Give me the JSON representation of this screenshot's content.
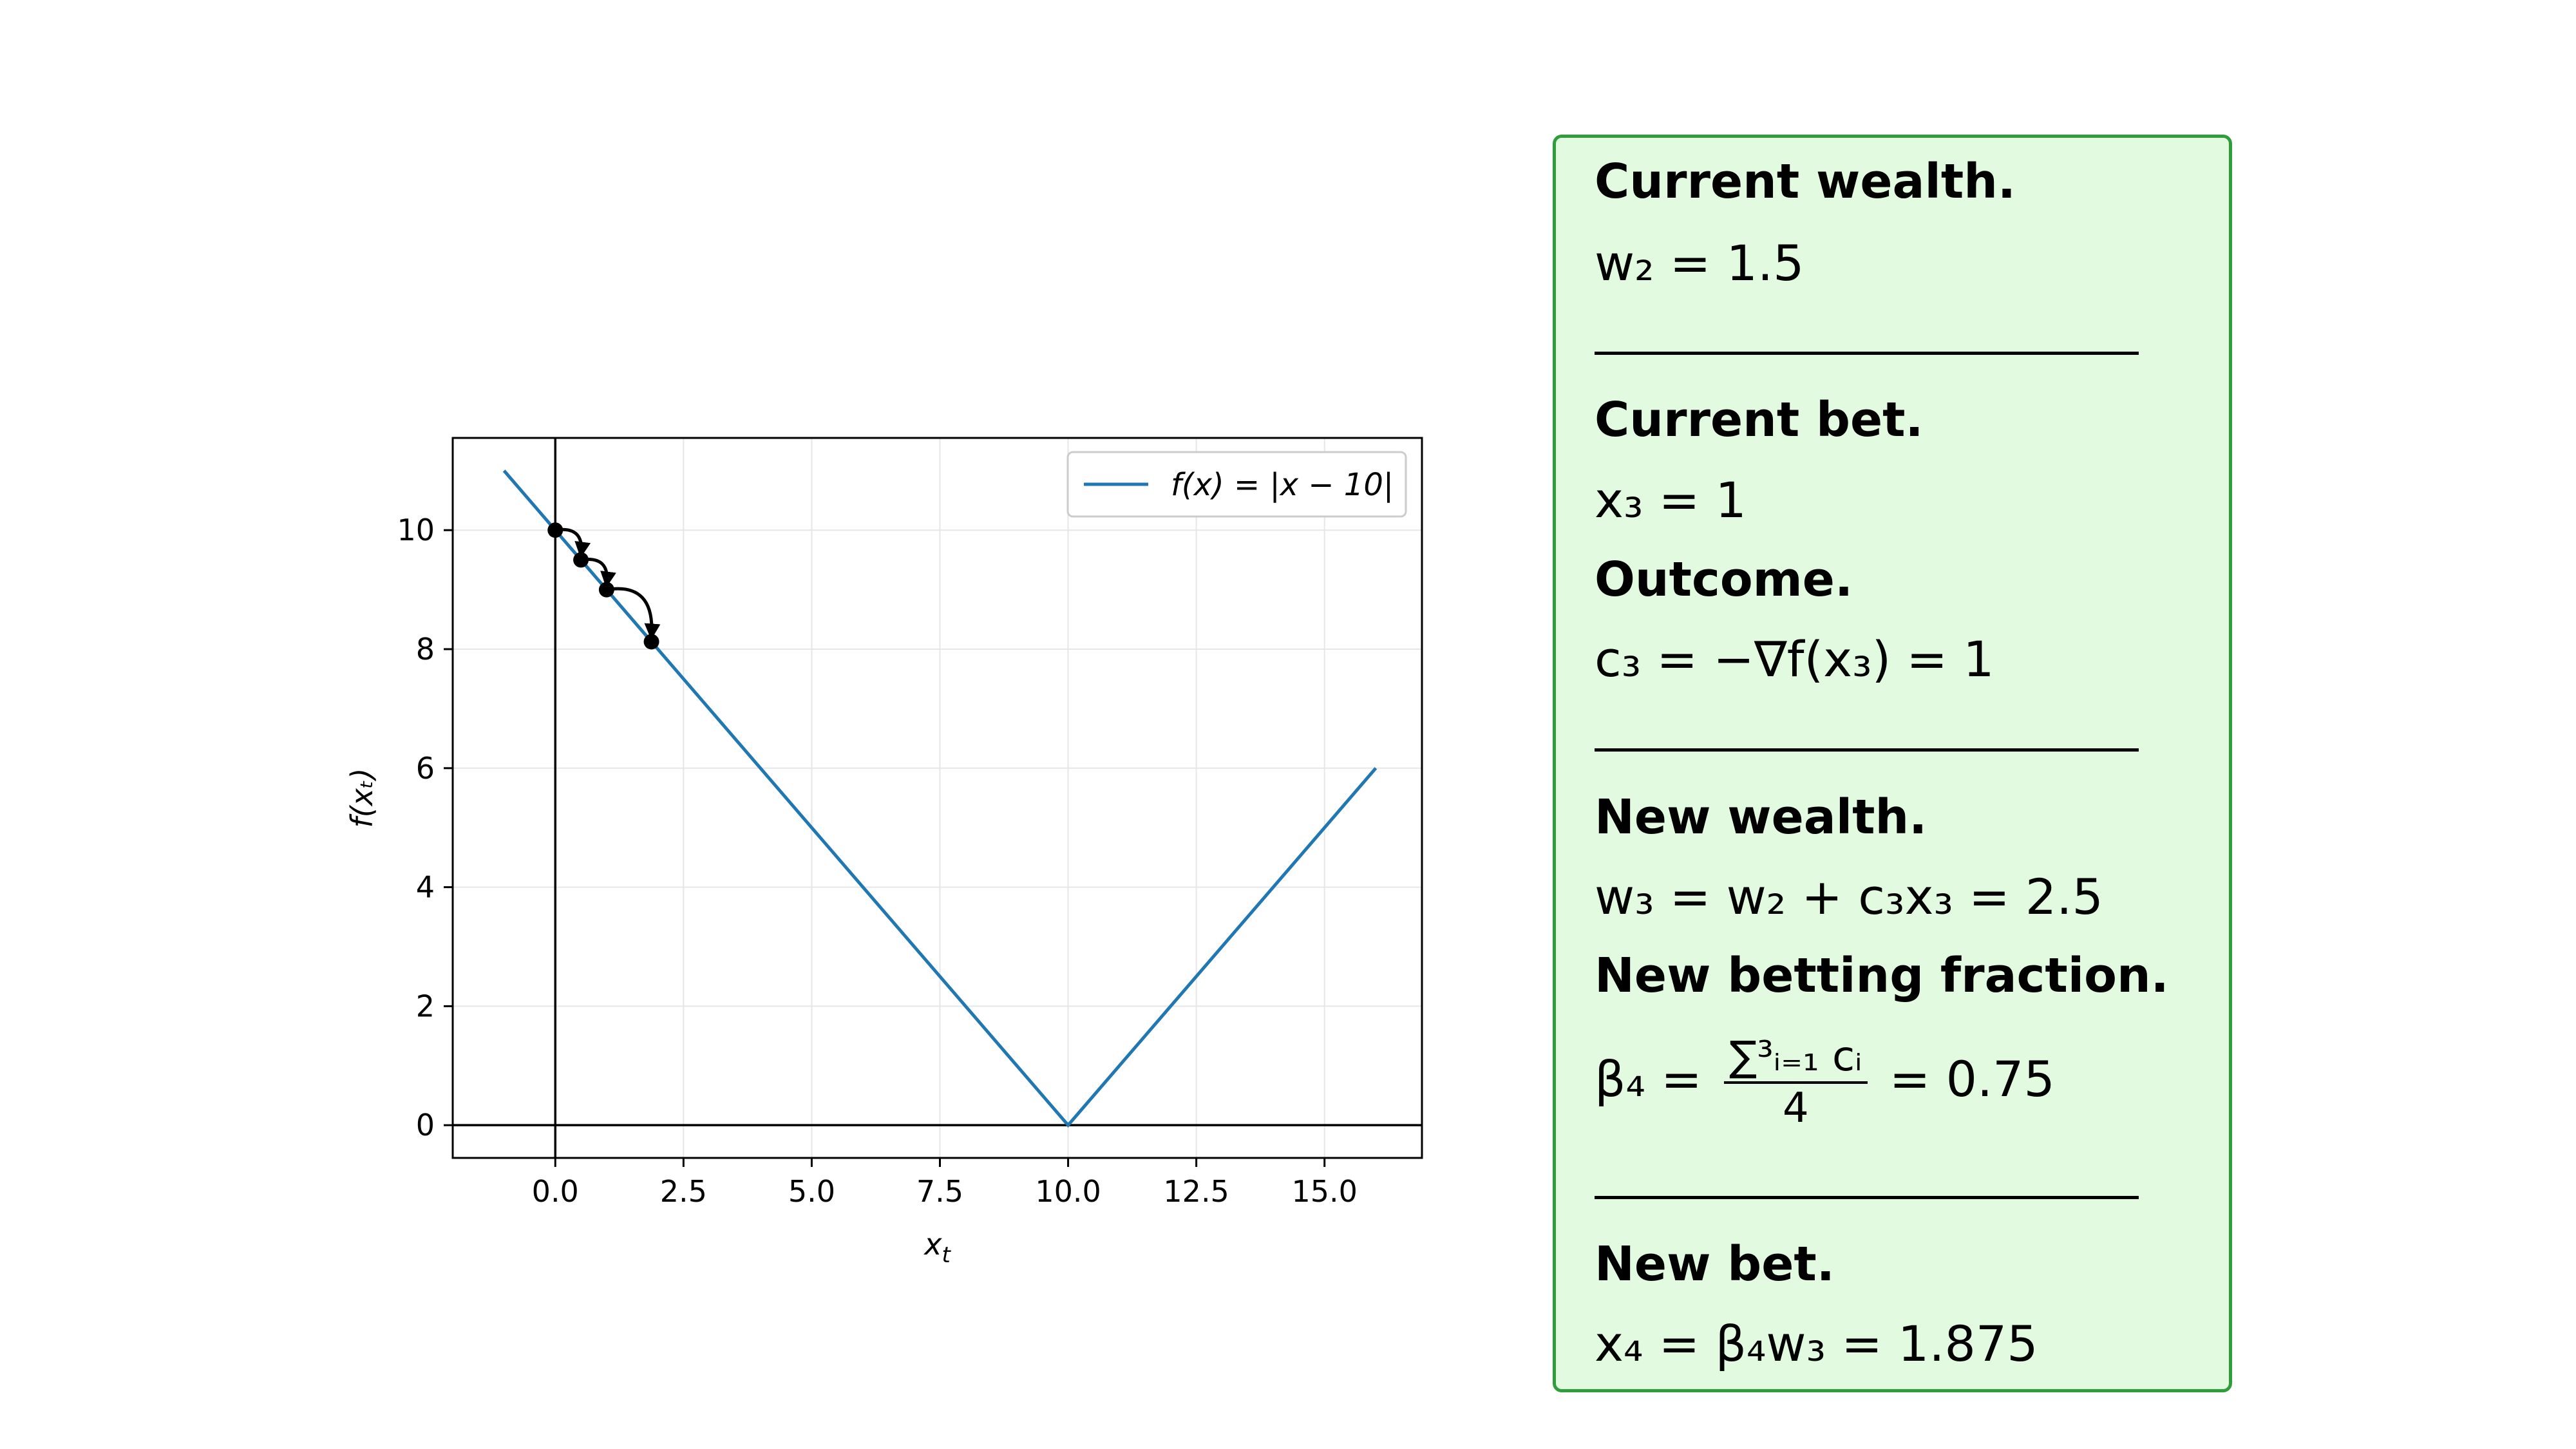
{
  "chart_data": {
    "type": "line",
    "xlabel": "x_t",
    "ylabel": "f(x_t)",
    "xlim": [
      -2.0,
      16.9
    ],
    "ylim": [
      -0.55,
      11.55
    ],
    "xticks": [
      "0.0",
      "2.5",
      "5.0",
      "7.5",
      "10.0",
      "12.5",
      "15.0"
    ],
    "yticks": [
      "0",
      "2",
      "4",
      "6",
      "8",
      "10"
    ],
    "grid": true,
    "legend_placement": "top-right",
    "series": [
      {
        "name": "f(x) = |x − 10|",
        "color": "#1f77b4",
        "x": [
          -1,
          10,
          16
        ],
        "y": [
          11,
          0,
          6
        ]
      }
    ],
    "iterates": {
      "color": "#000000",
      "x": [
        0,
        0.5,
        1.0,
        1.875
      ],
      "y": [
        10,
        9.5,
        9.0,
        8.125
      ]
    }
  },
  "panel": {
    "bg_color": "#e2fadf",
    "border_color": "#2f9e3a",
    "current_wealth_title": "Current wealth.",
    "current_wealth_eq": "w₂ = 1.5",
    "current_bet_title": "Current bet.",
    "current_bet_eq": "x₃ = 1",
    "outcome_title": "Outcome.",
    "outcome_eq": "c₃ = −∇f(x₃) = 1",
    "new_wealth_title": "New wealth.",
    "new_wealth_eq": "w₃ = w₂ + c₃x₃ = 2.5",
    "new_fraction_title": "New betting fraction.",
    "new_fraction_lhs": "β₄ =",
    "new_fraction_num": "∑³ᵢ₌₁ cᵢ",
    "new_fraction_den": "4",
    "new_fraction_rhs": "= 0.75",
    "new_bet_title": "New bet.",
    "new_bet_eq": "x₄ = β₄w₃ = 1.875"
  }
}
